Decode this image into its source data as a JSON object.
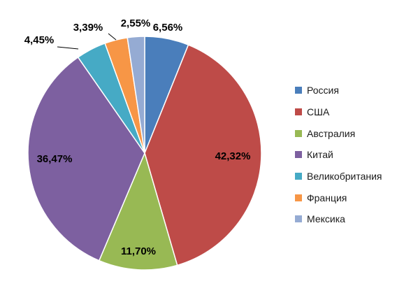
{
  "chart_data": {
    "type": "pie",
    "title": "",
    "categories": [
      "Россия",
      "США",
      "Австралия",
      "Китай",
      "Великобритания",
      "Франция",
      "Мексика"
    ],
    "values": [
      6.56,
      42.32,
      11.7,
      36.47,
      4.45,
      3.39,
      2.55
    ],
    "labels": [
      "6,56%",
      "42,32%",
      "11,70%",
      "36,47%",
      "4,45%",
      "3,39%",
      "2,55%"
    ],
    "colors": [
      "#4a7ebb",
      "#be4b48",
      "#98b954",
      "#7d60a0",
      "#46aac5",
      "#f79646",
      "#95abd3"
    ],
    "legend_position": "right",
    "start_angle_deg": 0,
    "direction": "clockwise"
  }
}
